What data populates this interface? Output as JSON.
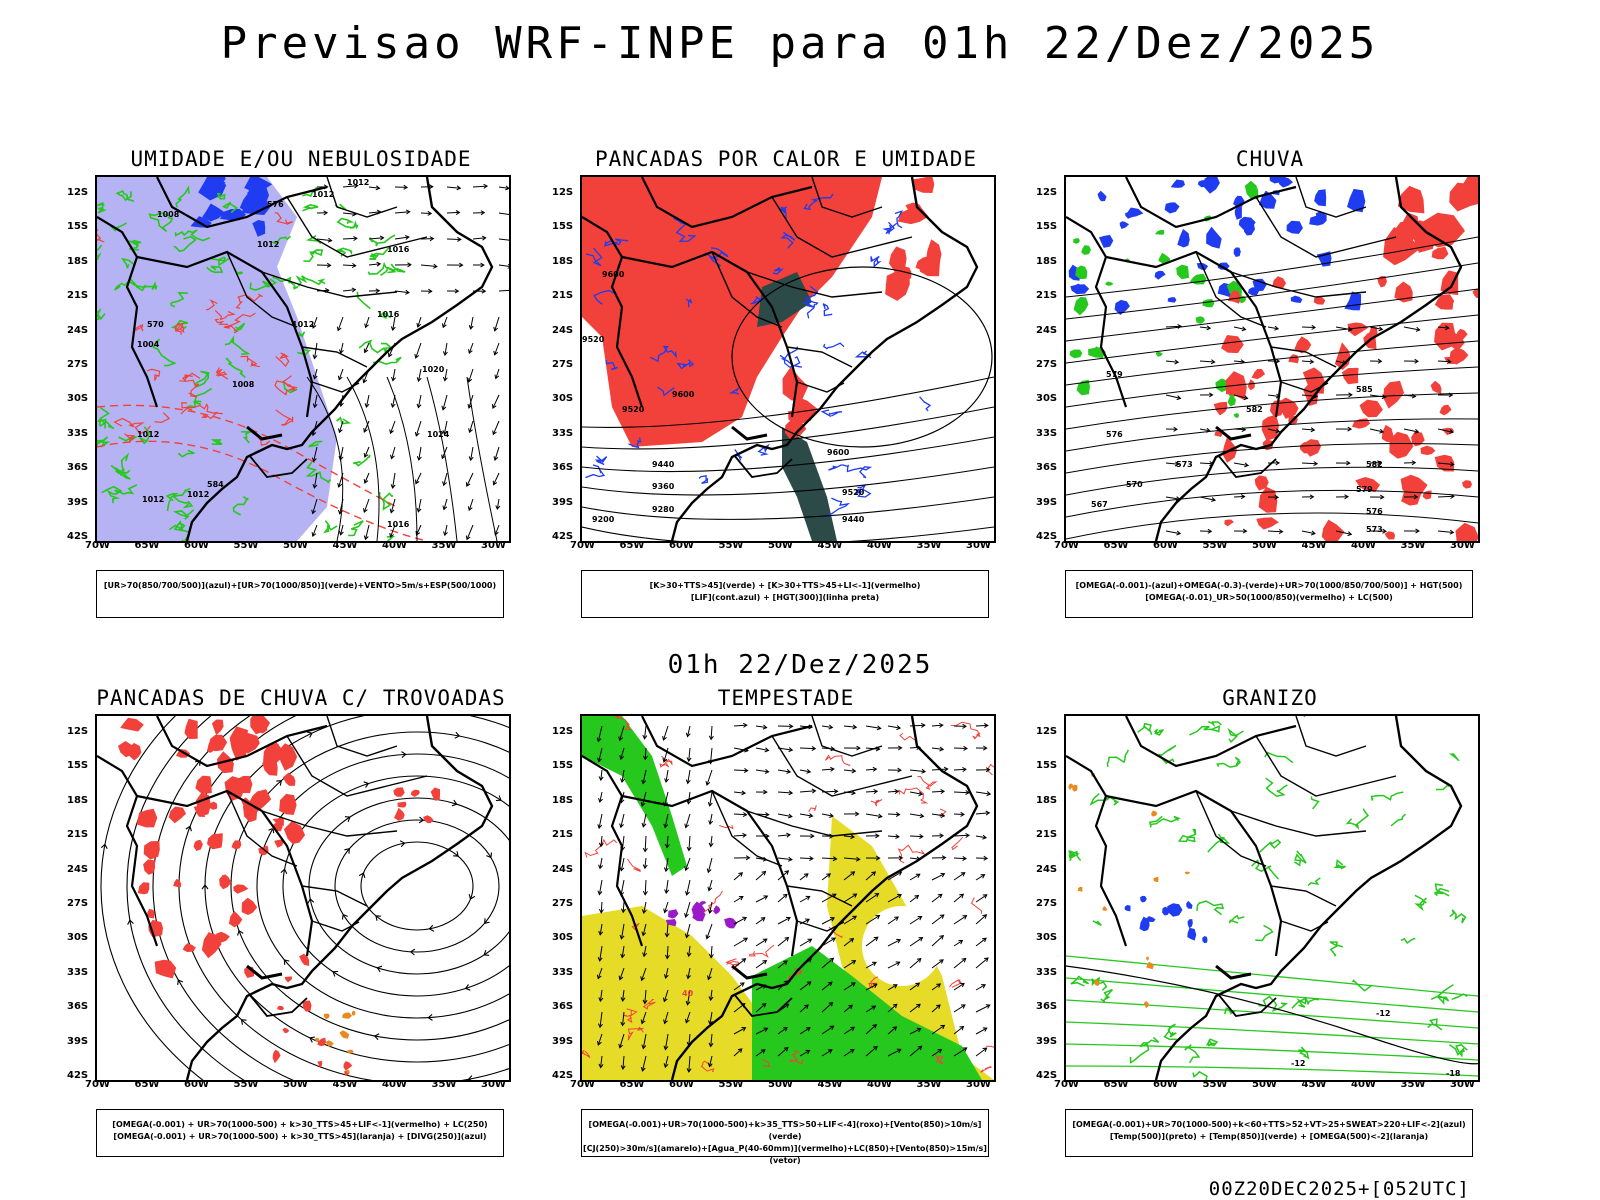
{
  "title": "Previsao WRF-INPE  para 01h 22/Dez/2025",
  "mid_title": "01h 22/Dez/2025",
  "stamp": "00Z20DEC2025+[052UTC]",
  "lat_labels": [
    "12S",
    "15S",
    "18S",
    "21S",
    "24S",
    "27S",
    "30S",
    "33S",
    "36S",
    "39S",
    "42S"
  ],
  "lon_labels": [
    "70W",
    "65W",
    "60W",
    "55W",
    "50W",
    "45W",
    "40W",
    "35W",
    "30W"
  ],
  "colors": {
    "red": "#f2413a",
    "blue": "#1f3cf0",
    "lavender": "#a9a6f2",
    "green": "#26c81e",
    "yellow": "#e6dc28",
    "orange": "#e88a1e",
    "purple": "#9a1ac8",
    "dark_teal": "#2b4a48"
  },
  "panels": [
    {
      "title": "UMIDADE E/OU NEBULOSIDADE",
      "legend": [
        "[UR>70(850/700/500)](azul)+[UR>70(1000/850)](verde)+VENTO>5m/s+ESP(500/1000)"
      ],
      "contour_labels": [
        "1012",
        "1012",
        "1008",
        "1012",
        "1004",
        "1016",
        "1016",
        "1012",
        "1020",
        "1008",
        "1012",
        "1024",
        "1012",
        "1012",
        "1016",
        "570",
        "576",
        "584"
      ]
    },
    {
      "title": "PANCADAS POR CALOR E UMIDADE",
      "legend": [
        "[K>30+TTS>45](verde)  +  [K>30+TTS>45+LI<-1](vermelho)",
        "[LIF](cont.azul)  +  [HGT(300)](linha preta)"
      ],
      "contour_labels": [
        "9600",
        "9520",
        "9600",
        "9520",
        "9440",
        "9360",
        "9280",
        "9200",
        "9600",
        "9520",
        "9440"
      ]
    },
    {
      "title": "CHUVA",
      "legend": [
        "[OMEGA(-0.001)-(azul)+OMEGA(-0.3)-(verde)+UR>70(1000/850/700/500)]  +  HGT(500)",
        "[OMEGA(-0.01)_UR>50(1000/850)(vermelho)  +  LC(500)"
      ],
      "contour_labels": [
        "585",
        "582",
        "579",
        "576",
        "573",
        "570",
        "567",
        "582",
        "579",
        "576",
        "573"
      ]
    },
    {
      "title": "PANCADAS DE CHUVA C/ TROVOADAS",
      "legend": [
        "[OMEGA(-0.001)  +  UR>70(1000-500)  +  k>30_TTS>45+LIF<-1](vermelho)  +  LC(250)",
        "[OMEGA(-0.001)  +  UR>70(1000-500)  +  k>30_TTS>45](laranja)  +  [DIVG(250)](azul)"
      ],
      "contour_labels": []
    },
    {
      "title": "TEMPESTADE",
      "legend": [
        "[OMEGA(-0.001)+UR>70(1000-500)+k>35_TTS>50+LIF<-4](roxo)+[Vento(850)>10m/s](verde)",
        "[CJ(250)>30m/s](amarelo)+[Agua_P(40-60mm)](vermelho)+LC(850)+[Vento(850)>15m/s](vetor)"
      ],
      "contour_labels": [
        "40"
      ]
    },
    {
      "title": "GRANIZO",
      "legend": [
        "[OMEGA(-0.001)+UR>70(1000-500)+k<60+TTS>52+VT>25+SWEAT>220+LIF<-2](azul)",
        "[Temp(500)](preto)  +  [Temp(850)](verde)  +  [OMEGA(500)<-2](laranja)"
      ],
      "contour_labels": [
        "-12",
        "-12",
        "-18"
      ]
    }
  ]
}
